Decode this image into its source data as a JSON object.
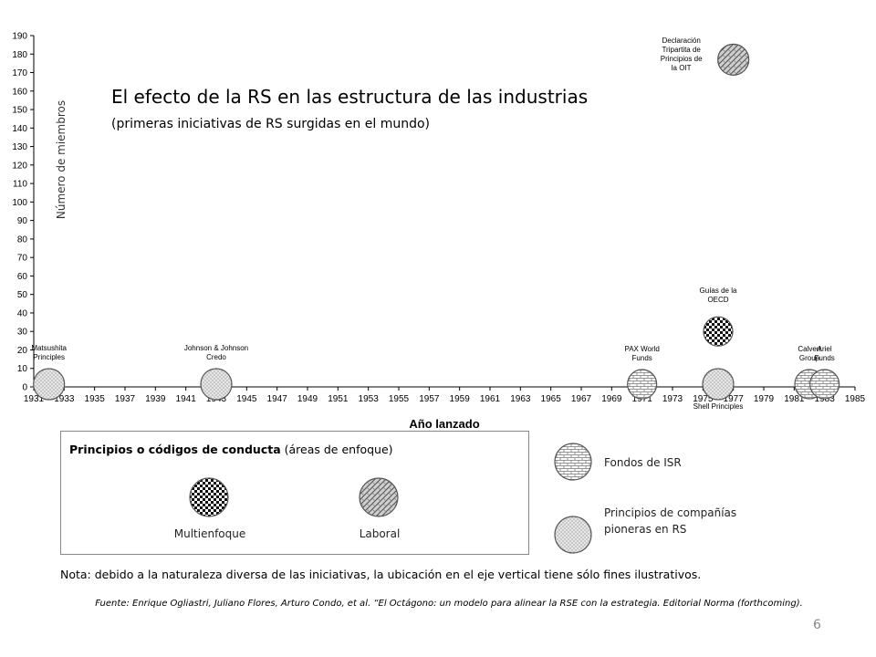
{
  "chart_data": {
    "type": "scatter",
    "title": "El efecto de la RS en las estructura de las industrias",
    "subtitle": "(primeras iniciativas de RS surgidas en el mundo)",
    "xlabel": "Año lanzado",
    "ylabel": "Número de miembros",
    "xlim": [
      1931,
      1985
    ],
    "ylim": [
      0,
      190
    ],
    "x_ticks": [
      "1931",
      "1933",
      "1935",
      "1937",
      "1939",
      "1941",
      "1943",
      "1945",
      "1947",
      "1949",
      "1951",
      "1953",
      "1955",
      "1957",
      "1959",
      "1961",
      "1963",
      "1965",
      "1967",
      "1969",
      "1971",
      "1973",
      "1975",
      "1977",
      "1979",
      "1981",
      "1983",
      "1985"
    ],
    "y_ticks": [
      "0",
      "10",
      "20",
      "30",
      "40",
      "50",
      "60",
      "70",
      "80",
      "90",
      "100",
      "110",
      "120",
      "130",
      "140",
      "150",
      "160",
      "170",
      "180",
      "190"
    ],
    "points": [
      {
        "x": 1932,
        "y": 0,
        "category": "pioneras",
        "label": [
          "Matsushita",
          "Principles"
        ]
      },
      {
        "x": 1943,
        "y": 0,
        "category": "pioneras",
        "label": [
          "Johnson & Johnson",
          "Credo"
        ]
      },
      {
        "x": 1971,
        "y": 0,
        "category": "isr",
        "label": [
          "PAX World",
          "Funds"
        ]
      },
      {
        "x": 1976,
        "y": 0,
        "category": "pioneras",
        "label": [
          "Shell Principles"
        ]
      },
      {
        "x": 1976,
        "y": 30,
        "category": "multienfoque",
        "label": [
          "Guías de la",
          "OECD"
        ]
      },
      {
        "x": 1977,
        "y": 177,
        "category": "laboral",
        "label": [
          "Declaración",
          "Tripartita de",
          "Principios de",
          "la OIT"
        ]
      },
      {
        "x": 1982,
        "y": 0,
        "category": "isr",
        "label": [
          "Calvert",
          "Group"
        ]
      },
      {
        "x": 1983,
        "y": 0,
        "category": "isr",
        "label": [
          "Ariel",
          "Funds"
        ]
      }
    ]
  },
  "legend": {
    "box_title_bold": "Principios o códigos de conducta",
    "box_title_rest": " (áreas de enfoque)",
    "multienfoque": "Multienfoque",
    "laboral": "Laboral",
    "isr": "Fondos de ISR",
    "pioneras": "Principios de compañías pioneras en RS"
  },
  "note": "Nota: debido a la naturaleza diversa de las iniciativas, la ubicación en el eje vertical tiene sólo fines ilustrativos.",
  "source": "Fuente: Enrique Ogliastri, Juliano Flores, Arturo Condo, et al. “El Octágono: un modelo para alinear la RSE con la estrategia. Editorial Norma (forthcoming).",
  "page_number": "6",
  "colors": {
    "axis": "#000000",
    "marker_fill": "#d8d8d8",
    "marker_stroke": "#555555",
    "legend_border": "#888888"
  }
}
